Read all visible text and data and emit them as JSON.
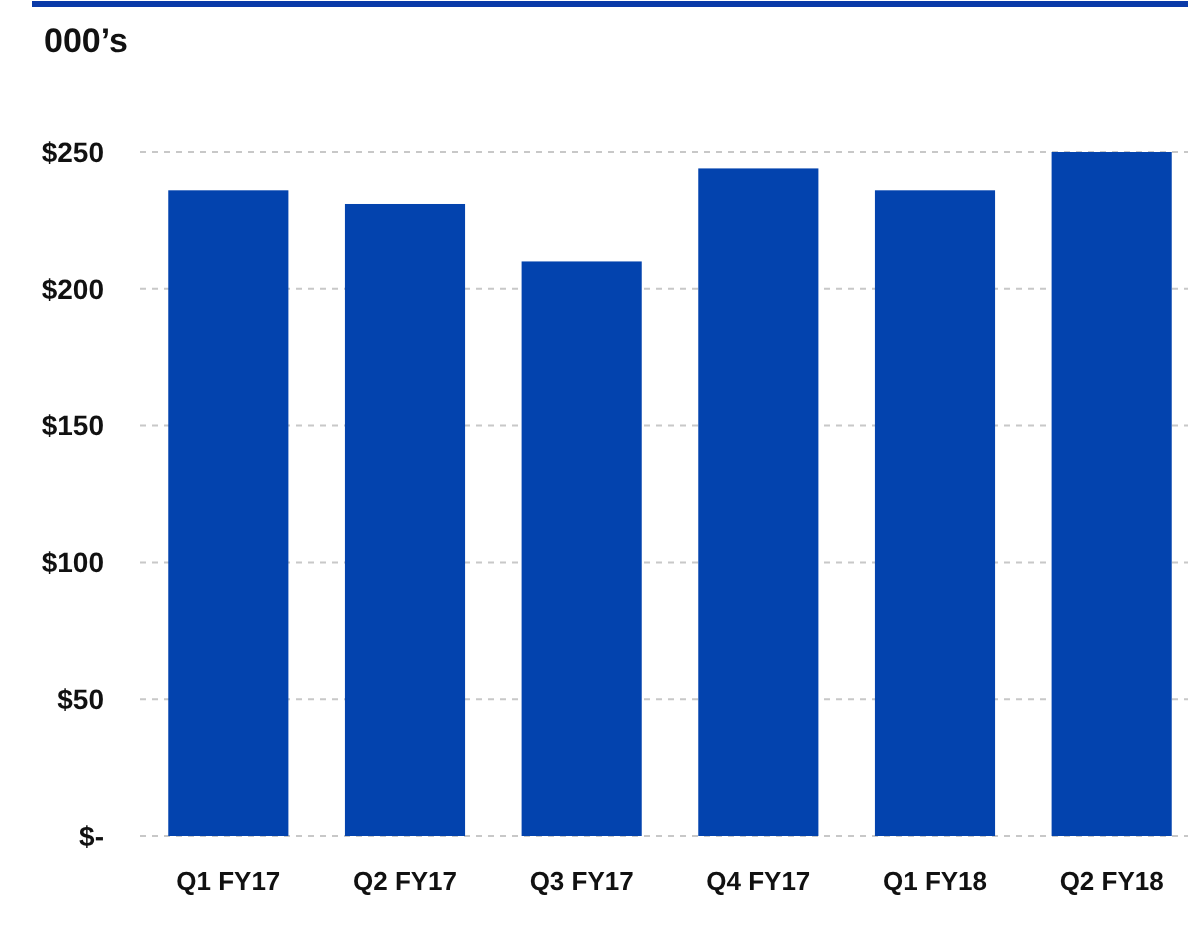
{
  "chart_data": {
    "type": "bar",
    "ylabel": "000’s",
    "categories": [
      "Q1 FY17",
      "Q2 FY17",
      "Q3 FY17",
      "Q4 FY17",
      "Q1 FY18",
      "Q2 FY18"
    ],
    "values": [
      236,
      231,
      210,
      244,
      236,
      250
    ],
    "color": "#0343ae",
    "ylim": [
      0,
      250
    ],
    "yticks": [
      {
        "value": 0,
        "label": "$-"
      },
      {
        "value": 50,
        "label": "$50"
      },
      {
        "value": 100,
        "label": "$100"
      },
      {
        "value": 150,
        "label": "$150"
      },
      {
        "value": 200,
        "label": "$200"
      },
      {
        "value": 250,
        "label": "$250"
      }
    ],
    "grid": "y"
  }
}
